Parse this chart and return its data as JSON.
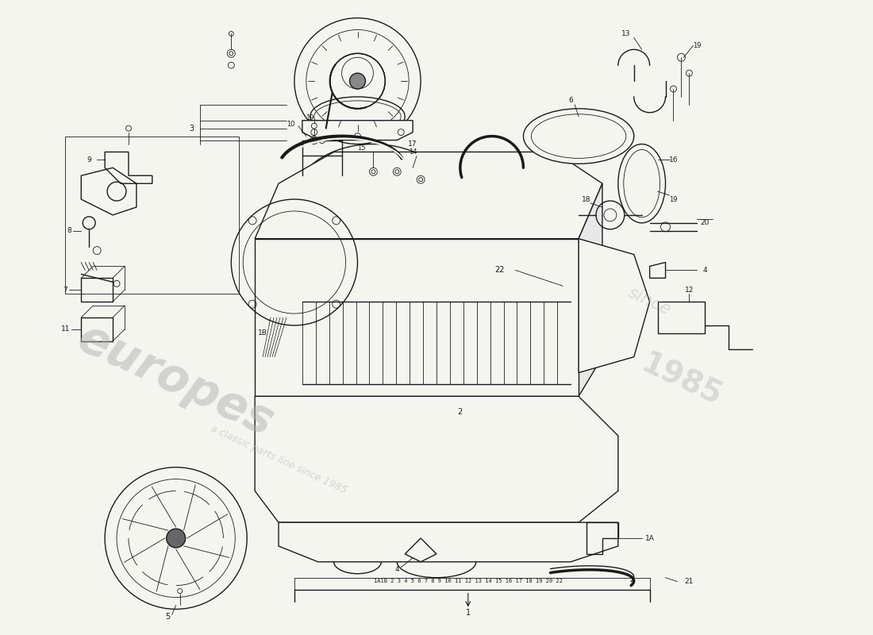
{
  "bg_color": "#f5f5f0",
  "line_color": "#1a1a1a",
  "watermark1": "europes",
  "watermark2": "a classic parts line since 1985",
  "wm_color": "#b0b0b0",
  "index_text": "1A1B 2 3 4 5 6 7 8 9 10 11 12 13 14 15 16 17 18 19 20 22",
  "fig_width": 11.0,
  "fig_height": 8.0,
  "dpi": 100,
  "xlim": [
    0,
    110
  ],
  "ylim": [
    0,
    80
  ]
}
